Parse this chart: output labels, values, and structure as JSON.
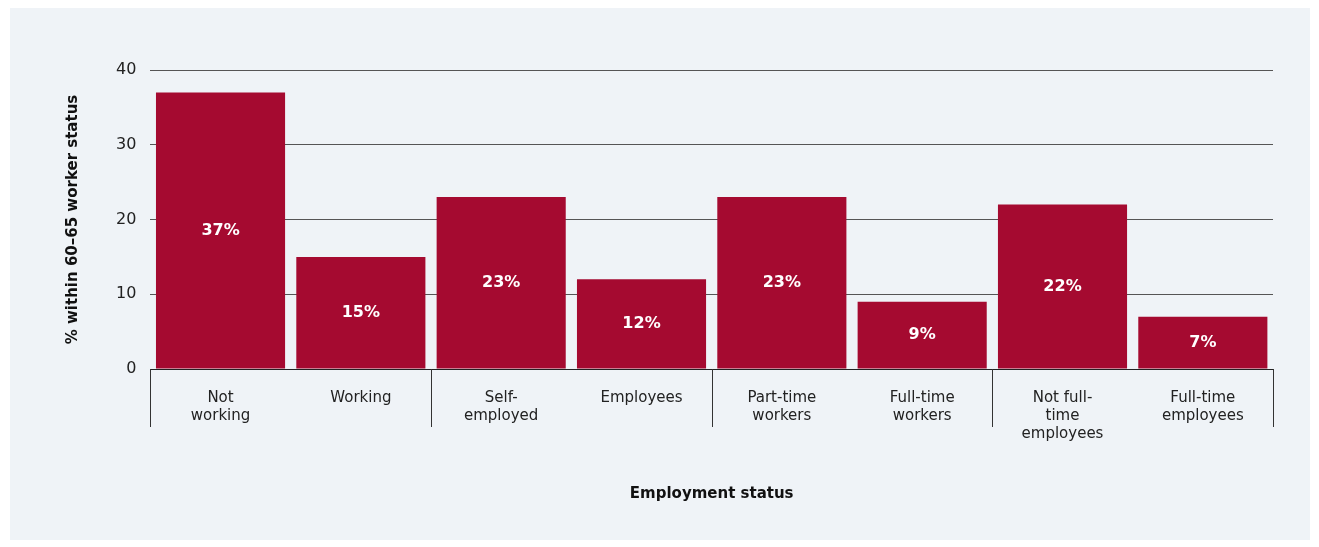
{
  "chart_data": {
    "type": "bar",
    "xlabel": "Employment status",
    "ylabel": "% within 60–65 worker status",
    "categories": [
      "Not working",
      "Working",
      "Self-employed",
      "Employees",
      "Part-time workers",
      "Full-time workers",
      "Not full-time employees",
      "Full-time employees"
    ],
    "values": [
      37,
      15,
      23,
      12,
      23,
      9,
      22,
      7
    ],
    "value_labels": [
      "37%",
      "15%",
      "23%",
      "12%",
      "23%",
      "9%",
      "22%",
      "7%"
    ],
    "color": "#a50a30",
    "ylim": [
      0,
      40
    ],
    "yticks": [
      0,
      10,
      20,
      30,
      40
    ],
    "grid": "y",
    "legend": false
  }
}
